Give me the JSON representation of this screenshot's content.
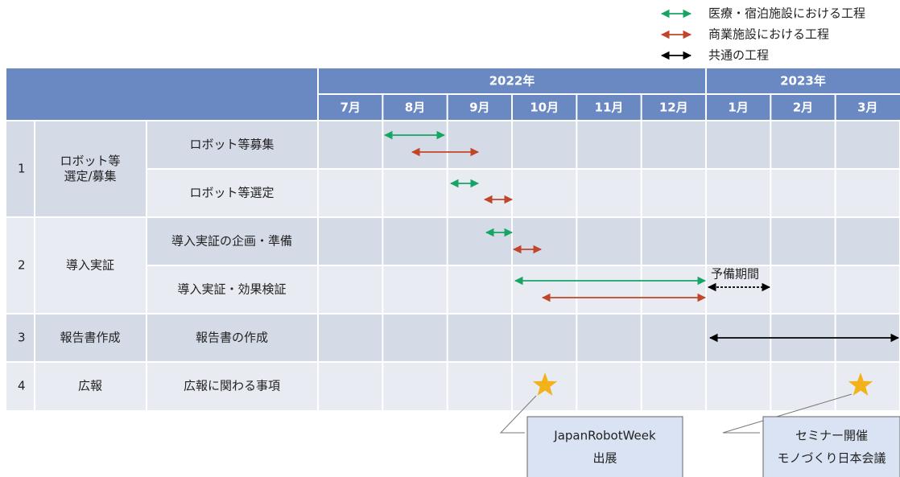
{
  "legend": [
    "医療・宿泊施設における工程",
    "商業施設における工程",
    "共通の工程"
  ],
  "header": {
    "years": [
      "2022年",
      "2023年"
    ],
    "months": [
      "7月",
      "8月",
      "9月",
      "10月",
      "11月",
      "12月",
      "1月",
      "2月",
      "3月"
    ]
  },
  "groups": [
    {
      "no": "1",
      "name": [
        "ロボット等",
        "選定/募集"
      ],
      "tasks": [
        "ロボット等募集",
        "ロボット等選定"
      ]
    },
    {
      "no": "2",
      "name": [
        "導入実証"
      ],
      "tasks": [
        "導入実証の企画・準備",
        "導入実証・効果検証"
      ]
    },
    {
      "no": "3",
      "name": [
        "報告書作成"
      ],
      "tasks": [
        "報告書の作成"
      ]
    },
    {
      "no": "4",
      "name": [
        "広報"
      ],
      "tasks": [
        "広報に関わる事項"
      ]
    }
  ],
  "spare_label": "予備期間",
  "callouts": [
    [
      "JapanRobotWeek",
      "出展"
    ],
    [
      "セミナー開催",
      "モノづくり日本会議"
    ]
  ]
}
